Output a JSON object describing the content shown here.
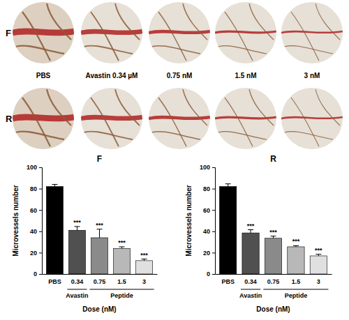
{
  "photos": {
    "rows": [
      "F",
      "R"
    ],
    "labels": [
      "PBS",
      "Avastin 0.34 µM",
      "0.75 nM",
      "1.5 nM",
      "3 nM"
    ]
  },
  "chart_data": [
    {
      "type": "bar",
      "title": "F",
      "y_label": "Microvessels number",
      "x_label": "Dose (nM)",
      "categories": [
        "PBS",
        "0.34",
        "0.75",
        "1.5",
        "3"
      ],
      "groups": [
        null,
        "Avastin",
        "Peptide",
        "Peptide",
        "Peptide"
      ],
      "values": [
        82,
        41,
        34,
        24,
        12.5
      ],
      "errors": [
        2,
        3.5,
        8,
        1.5,
        1.5
      ],
      "annotations": [
        null,
        "***",
        "***",
        "***",
        "***"
      ],
      "colors": [
        "#000000",
        "#505050",
        "#8a8a8a",
        "#b8b8b8",
        "#e0e0e0"
      ],
      "ylim": [
        0,
        100
      ],
      "yticks": [
        0,
        20,
        40,
        60,
        80,
        100
      ]
    },
    {
      "type": "bar",
      "title": "R",
      "y_label": "Microvessels number",
      "x_label": "Dose (nM)",
      "categories": [
        "PBS",
        "0.34",
        "0.75",
        "1.5",
        "3"
      ],
      "groups": [
        null,
        "Avastin",
        "Peptide",
        "Peptide",
        "Peptide"
      ],
      "values": [
        82,
        38.5,
        33.5,
        25.5,
        17
      ],
      "errors": [
        2.5,
        3,
        2,
        1,
        1.5
      ],
      "annotations": [
        null,
        "***",
        "***",
        "***",
        "***"
      ],
      "colors": [
        "#000000",
        "#505050",
        "#8a8a8a",
        "#b8b8b8",
        "#e0e0e0"
      ],
      "ylim": [
        0,
        100
      ],
      "yticks": [
        0,
        20,
        40,
        60,
        80,
        100
      ]
    }
  ]
}
